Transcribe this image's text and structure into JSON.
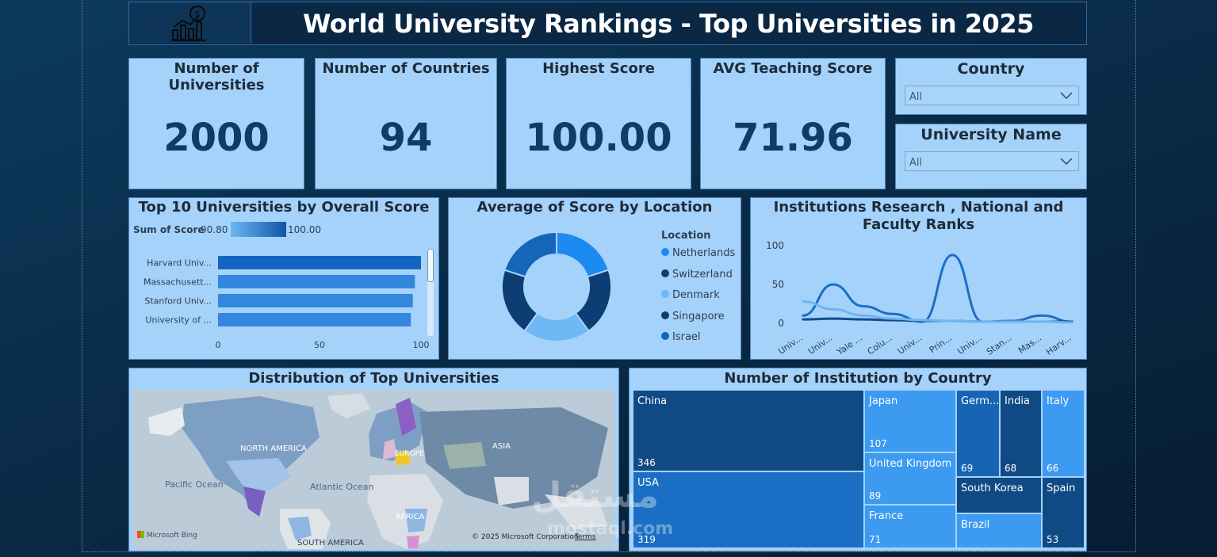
{
  "header": {
    "title": "World University Rankings - Top Universities in 2025",
    "logo_icon": "growth-chart-icon"
  },
  "kpis": [
    {
      "label": "Number of Universities",
      "value": "2000"
    },
    {
      "label": "Number of Countries",
      "value": "94"
    },
    {
      "label": "Highest Score",
      "value": "100.00"
    },
    {
      "label": "AVG Teaching Score",
      "value": "71.96"
    }
  ],
  "slicers": {
    "country": {
      "title": "Country",
      "value": "All"
    },
    "university": {
      "title": "University Name",
      "value": "All"
    }
  },
  "colors": {
    "card_bg": "#a5d2fb",
    "dark_blue": "#0f3a6a",
    "accent": "#1b7fe0"
  },
  "chart_data": [
    {
      "type": "bar",
      "title": "Top 10 Universities by Overall Score",
      "legend": {
        "label": "Sum of Score",
        "min": "90.80",
        "max": "100.00"
      },
      "categories": [
        "Harvard Univ...",
        "Massachusett...",
        "Stanford Univ...",
        "University of ..."
      ],
      "values": [
        100,
        97,
        96,
        95
      ],
      "xticks": [
        "0",
        "50",
        "100"
      ],
      "xlim": [
        0,
        100
      ]
    },
    {
      "type": "pie",
      "title": "Average of Score by Location",
      "legend_title": "Location",
      "labels": [
        "Netherlands",
        "Switzerland",
        "Denmark",
        "Singapore",
        "Israel"
      ],
      "values": [
        20,
        20,
        20,
        20,
        20
      ],
      "colors": [
        "#1d8af0",
        "#0c3d73",
        "#6fb8f6",
        "#0c3d73",
        "#1566b8"
      ]
    },
    {
      "type": "line",
      "title": "Institutions Research , National and Faculty Ranks",
      "categories": [
        "Univ...",
        "Univ...",
        "Yale ...",
        "Colu...",
        "Univ...",
        "Prin...",
        "Univ...",
        "Stan...",
        "Mas...",
        "Harv..."
      ],
      "yticks": [
        "100",
        "50",
        "0"
      ],
      "ylim": [
        0,
        100
      ],
      "series": [
        {
          "color": "#1b6fc4",
          "values": [
            10,
            50,
            22,
            12,
            2,
            88,
            2,
            3,
            10,
            2
          ]
        },
        {
          "color": "#0f4d8a",
          "values": [
            5,
            6,
            5,
            4,
            3,
            3,
            2,
            2,
            2,
            2
          ]
        },
        {
          "color": "#6fb3f0",
          "values": [
            28,
            18,
            10,
            6,
            4,
            3,
            2,
            2,
            2,
            1
          ]
        }
      ]
    },
    {
      "type": "treemap",
      "title": "Number of Institution by Country",
      "labels": [
        "China",
        "USA",
        "Japan",
        "United Kingdom",
        "France",
        "Germ...",
        "India",
        "Italy",
        "South Korea",
        "Spain",
        "Brazil"
      ],
      "values": [
        346,
        319,
        107,
        89,
        71,
        69,
        68,
        66,
        null,
        53,
        null
      ],
      "value_labels": [
        "346",
        "319",
        "107",
        "89",
        "71",
        "69",
        "68",
        "66",
        "",
        "53",
        ""
      ]
    }
  ],
  "map": {
    "title": "Distribution of Top Universities",
    "labels": [
      "NORTH AMERICA",
      "EUROPE",
      "ASIA",
      "AFRICA",
      "SOUTH AMERICA",
      "Pacific Ocean",
      "Atlantic Ocean"
    ],
    "brand": "Microsoft Bing",
    "copyright": "© 2025 Microsoft Corporation",
    "terms": "Terms"
  },
  "watermark": {
    "text": "مستقل",
    "sub": "mostaql.com"
  }
}
